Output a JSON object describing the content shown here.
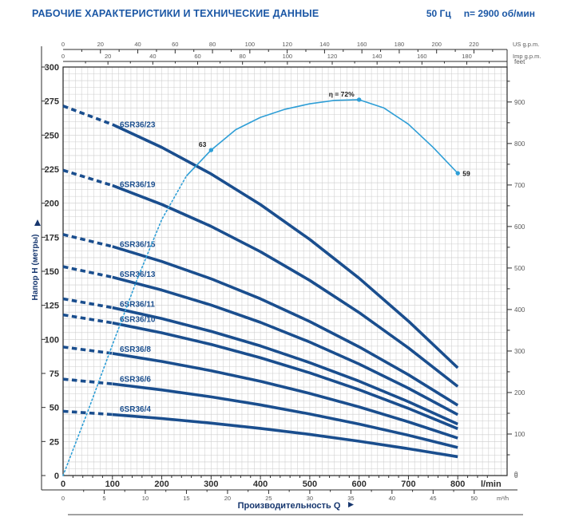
{
  "header": {
    "title": "РАБОЧИЕ ХАРАКТЕРИСТИКИ И ТЕХНИЧЕСКИЕ ДАННЫЕ",
    "frequency": "50 Гц",
    "speed": "n= 2900 об/мин"
  },
  "chart_data": {
    "type": "line",
    "description": "Q-H performance curves of 6SR36 submersible pump series at 50 Hz, 2900 rpm, with efficiency curve",
    "x_max_lmin": 900,
    "y_max_m": 300,
    "grid": true,
    "legend_position": "inline-labels",
    "q_lmin": [
      0,
      100,
      200,
      300,
      400,
      500,
      600,
      700,
      800
    ],
    "dashed_until_lmin": 100,
    "series": [
      {
        "name": "6SR36/23",
        "values": [
          271.4,
          257.8,
          241.0,
          221.5,
          199.0,
          173.4,
          144.9,
          113.4,
          79.1
        ]
      },
      {
        "name": "6SR36/19",
        "values": [
          224.2,
          213.0,
          199.1,
          183.0,
          164.4,
          143.3,
          119.7,
          93.7,
          65.4
        ]
      },
      {
        "name": "6SR36/15",
        "values": [
          177.0,
          168.2,
          157.2,
          144.5,
          129.8,
          113.1,
          94.5,
          74.0,
          51.6
        ]
      },
      {
        "name": "6SR36/13",
        "values": [
          153.4,
          145.7,
          136.2,
          125.2,
          112.5,
          98.0,
          81.9,
          64.1,
          44.7
        ]
      },
      {
        "name": "6SR36/11",
        "values": [
          129.8,
          123.3,
          115.3,
          105.9,
          95.2,
          82.9,
          69.3,
          54.2,
          37.8
        ]
      },
      {
        "name": "6SR36/10",
        "values": [
          118.0,
          112.1,
          104.8,
          96.3,
          86.5,
          75.4,
          63.0,
          49.3,
          34.4
        ]
      },
      {
        "name": "6SR36/8",
        "values": [
          94.4,
          89.7,
          83.8,
          77.0,
          69.2,
          60.3,
          50.4,
          39.4,
          27.5
        ]
      },
      {
        "name": "6SR36/6",
        "values": [
          70.8,
          67.3,
          62.9,
          57.8,
          51.9,
          45.2,
          37.8,
          29.6,
          20.6
        ]
      },
      {
        "name": "6SR36/4",
        "values": [
          47.2,
          44.8,
          41.9,
          38.5,
          34.6,
          30.2,
          25.2,
          19.7,
          13.8
        ]
      }
    ],
    "efficiency_curve": {
      "q_lmin": [
        0,
        50,
        100,
        150,
        200,
        250,
        300,
        350,
        400,
        450,
        500,
        550,
        600,
        650,
        700,
        750,
        800
      ],
      "h_equiv_m": [
        0,
        47,
        96,
        144,
        188,
        220,
        239,
        254,
        263,
        269,
        273,
        275.5,
        276,
        270,
        258,
        241,
        222
      ],
      "dotted_until_lmin": 250,
      "markers": [
        {
          "q_lmin": 300,
          "label": "63"
        },
        {
          "q_lmin": 600,
          "label": "η = 72%"
        },
        {
          "q_lmin": 800,
          "label": "59"
        }
      ]
    },
    "axes": {
      "y_left": {
        "label": "Напор H (метры)",
        "ticks": [
          0,
          25,
          50,
          75,
          100,
          125,
          150,
          175,
          200,
          225,
          250,
          275,
          300
        ]
      },
      "y_right": {
        "unit": "feet",
        "ticks": [
          0,
          100,
          200,
          300,
          400,
          500,
          600,
          700,
          800,
          900
        ]
      },
      "x_lmin": {
        "unit": "l/min",
        "ticks": [
          0,
          100,
          200,
          300,
          400,
          500,
          600,
          700,
          800
        ]
      },
      "x_m3h": {
        "unit": "m³/h",
        "ticks": [
          0,
          5,
          10,
          15,
          20,
          25,
          30,
          35,
          40,
          45,
          50
        ]
      },
      "x_usgpm": {
        "unit": "US g.p.m.",
        "ticks": [
          0,
          20,
          40,
          60,
          80,
          100,
          120,
          140,
          160,
          180,
          200,
          220
        ]
      },
      "x_impgpm": {
        "unit": "Imp g.p.m.",
        "ticks": [
          0,
          20,
          40,
          60,
          80,
          100,
          120,
          140,
          160,
          180
        ]
      },
      "xlabel": "Производительность Q"
    }
  },
  "colors": {
    "curve_navy": "#1a4e8e",
    "efficiency_blue": "#2e9ed6",
    "header_blue": "#1b57a5",
    "grid_gray": "#cdcdcd",
    "axis_dark": "#2e2e2e",
    "axis_gray": "#5a5a5a",
    "border_dark": "#222222"
  }
}
